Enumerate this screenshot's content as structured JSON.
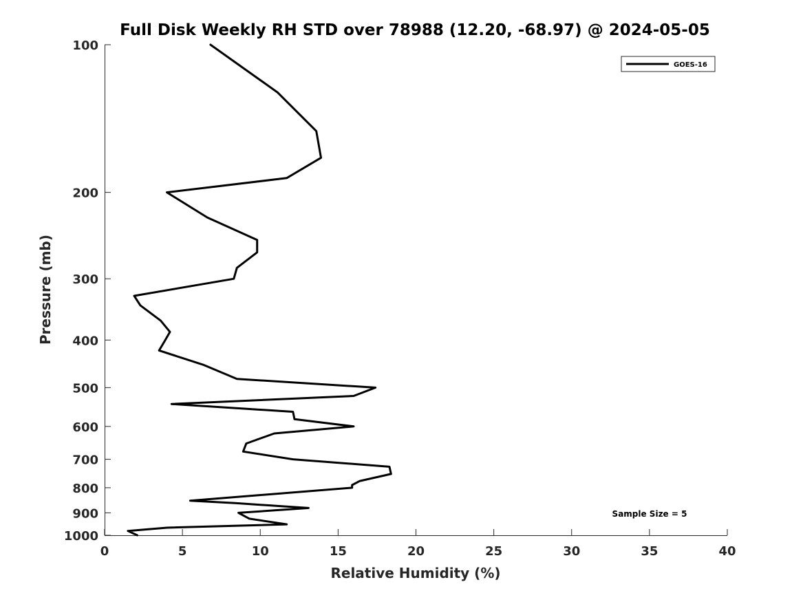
{
  "chart_data": {
    "type": "line",
    "title": "Full Disk Weekly RH STD over 78988 (12.20, -68.97) @ 2024-05-05",
    "xlabel": "Relative Humidity (%)",
    "ylabel": "Pressure (mb)",
    "xlim": [
      0,
      40
    ],
    "ylim": [
      100,
      1000
    ],
    "y_scale": "log",
    "y_reversed": true,
    "grid": false,
    "legend_position": "top-right",
    "x_ticks": [
      "0",
      "5",
      "10",
      "15",
      "20",
      "25",
      "30",
      "35",
      "40"
    ],
    "y_ticks": [
      "100",
      "200",
      "300",
      "400",
      "500",
      "600",
      "700",
      "800",
      "900",
      "1000"
    ],
    "annotation": "Sample Size = 5",
    "series": [
      {
        "name": "GOES-16",
        "color": "#000000",
        "points": [
          [
            6.8,
            100
          ],
          [
            11.1,
            125
          ],
          [
            13.6,
            150
          ],
          [
            13.9,
            170
          ],
          [
            11.7,
            187
          ],
          [
            4.0,
            200
          ],
          [
            6.6,
            225
          ],
          [
            9.8,
            250
          ],
          [
            9.8,
            265
          ],
          [
            8.5,
            285
          ],
          [
            8.3,
            300
          ],
          [
            1.9,
            325
          ],
          [
            2.3,
            340
          ],
          [
            3.6,
            365
          ],
          [
            4.2,
            385
          ],
          [
            3.9,
            400
          ],
          [
            3.5,
            420
          ],
          [
            6.4,
            450
          ],
          [
            8.5,
            480
          ],
          [
            17.4,
            500
          ],
          [
            16.0,
            520
          ],
          [
            4.3,
            540
          ],
          [
            12.1,
            560
          ],
          [
            12.2,
            580
          ],
          [
            16.0,
            600
          ],
          [
            10.9,
            620
          ],
          [
            9.1,
            650
          ],
          [
            8.9,
            675
          ],
          [
            12.1,
            700
          ],
          [
            18.3,
            725
          ],
          [
            18.4,
            750
          ],
          [
            16.4,
            775
          ],
          [
            15.9,
            790
          ],
          [
            15.9,
            800
          ],
          [
            5.5,
            850
          ],
          [
            8.4,
            860
          ],
          [
            13.1,
            880
          ],
          [
            8.6,
            900
          ],
          [
            9.3,
            925
          ],
          [
            11.7,
            950
          ],
          [
            4.0,
            965
          ],
          [
            1.5,
            980
          ],
          [
            2.1,
            1000
          ]
        ]
      }
    ]
  }
}
